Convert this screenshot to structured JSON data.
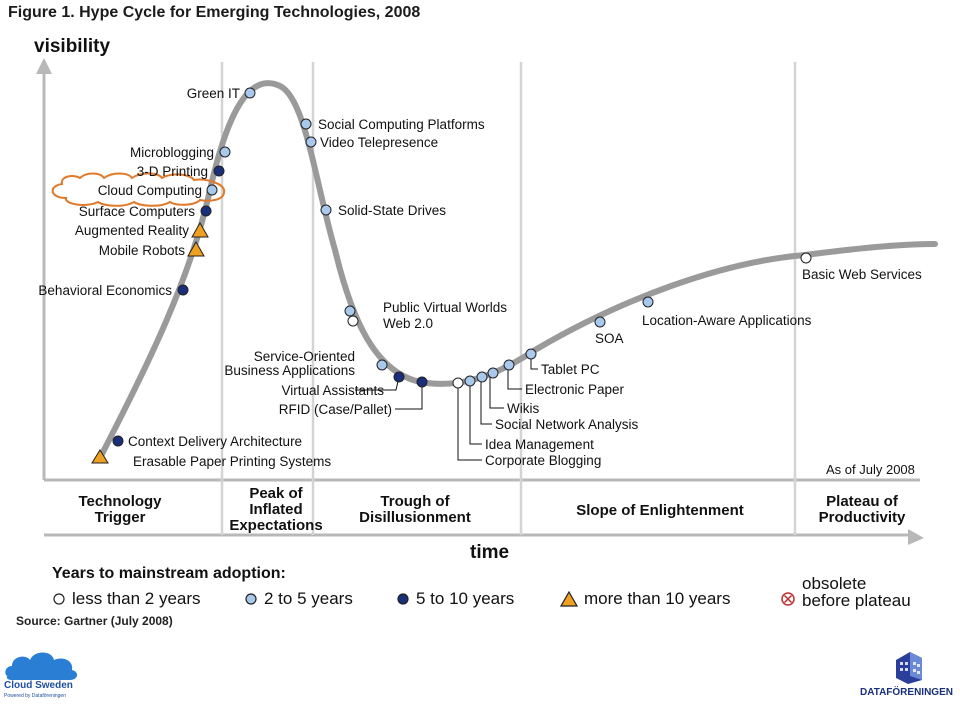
{
  "title": "Figure 1. Hype Cycle for Emerging Technologies, 2008",
  "axes": {
    "y_label": "visibility",
    "x_label": "time"
  },
  "as_of": "As of July 2008",
  "phases": [
    {
      "label": "Technology Trigger"
    },
    {
      "label": "Peak of Inflated Expectations"
    },
    {
      "label": "Trough of Disillusionment"
    },
    {
      "label": "Slope of Enlightenment"
    },
    {
      "label": "Plateau of Productivity"
    }
  ],
  "legend": {
    "title": "Years to mainstream adoption:",
    "items": [
      {
        "marker": "white-circle",
        "label": "less than 2 years"
      },
      {
        "marker": "light-blue-circle",
        "label": "2 to 5 years"
      },
      {
        "marker": "dark-blue-circle",
        "label": "5 to 10 years"
      },
      {
        "marker": "orange-triangle",
        "label": "more than 10 years"
      },
      {
        "marker": "obsolete-icon",
        "label_top": "obsolete",
        "label": "before plateau"
      }
    ]
  },
  "source": "Source: Gartner (July 2008)",
  "colors": {
    "curve": "#9a9a9a",
    "less_than_2": "#ffffff",
    "2_to_5": "#a8c8ec",
    "5_to_10": "#1a2f7a",
    "more_than_10": "#f0a020",
    "highlight": "#e07a2a"
  },
  "technologies": [
    {
      "name": "Green IT",
      "category": "2_to_5"
    },
    {
      "name": "Microblogging",
      "category": "2_to_5"
    },
    {
      "name": "3-D Printing",
      "category": "5_to_10"
    },
    {
      "name": "Cloud Computing",
      "category": "2_to_5"
    },
    {
      "name": "Surface Computers",
      "category": "5_to_10"
    },
    {
      "name": "Augmented Reality",
      "category": "more_than_10"
    },
    {
      "name": "Mobile Robots",
      "category": "more_than_10"
    },
    {
      "name": "Behavioral Economics",
      "category": "5_to_10"
    },
    {
      "name": "Context Delivery Architecture",
      "category": "5_to_10"
    },
    {
      "name": "Erasable Paper Printing Systems",
      "category": "more_than_10"
    },
    {
      "name": "Social Computing Platforms",
      "category": "2_to_5"
    },
    {
      "name": "Video Telepresence",
      "category": "2_to_5"
    },
    {
      "name": "Solid-State Drives",
      "category": "2_to_5"
    },
    {
      "name": "Public Virtual Worlds",
      "category": "2_to_5"
    },
    {
      "name": "Web 2.0",
      "category": "less_than_2"
    },
    {
      "name": "Service-Oriented",
      "category": "2_to_5"
    },
    {
      "name": "Business Applications",
      "category": "2_to_5"
    },
    {
      "name": "Virtual Assistants",
      "category": "5_to_10"
    },
    {
      "name": "RFID (Case/Pallet)",
      "category": "5_to_10"
    },
    {
      "name": "Tablet PC",
      "category": "2_to_5"
    },
    {
      "name": "Electronic Paper",
      "category": "2_to_5"
    },
    {
      "name": "Wikis",
      "category": "2_to_5"
    },
    {
      "name": "Social Network Analysis",
      "category": "2_to_5"
    },
    {
      "name": "Idea Management",
      "category": "2_to_5"
    },
    {
      "name": "Corporate Blogging",
      "category": "less_than_2"
    },
    {
      "name": "SOA",
      "category": "2_to_5"
    },
    {
      "name": "Location-Aware Applications",
      "category": "2_to_5"
    },
    {
      "name": "Basic Web Services",
      "category": "less_than_2"
    }
  ],
  "logos": {
    "left": {
      "name": "Cloud Sweden",
      "tagline": "Powered by Dataföreningen"
    },
    "right": {
      "name": "DATAFÖRENINGEN"
    }
  }
}
